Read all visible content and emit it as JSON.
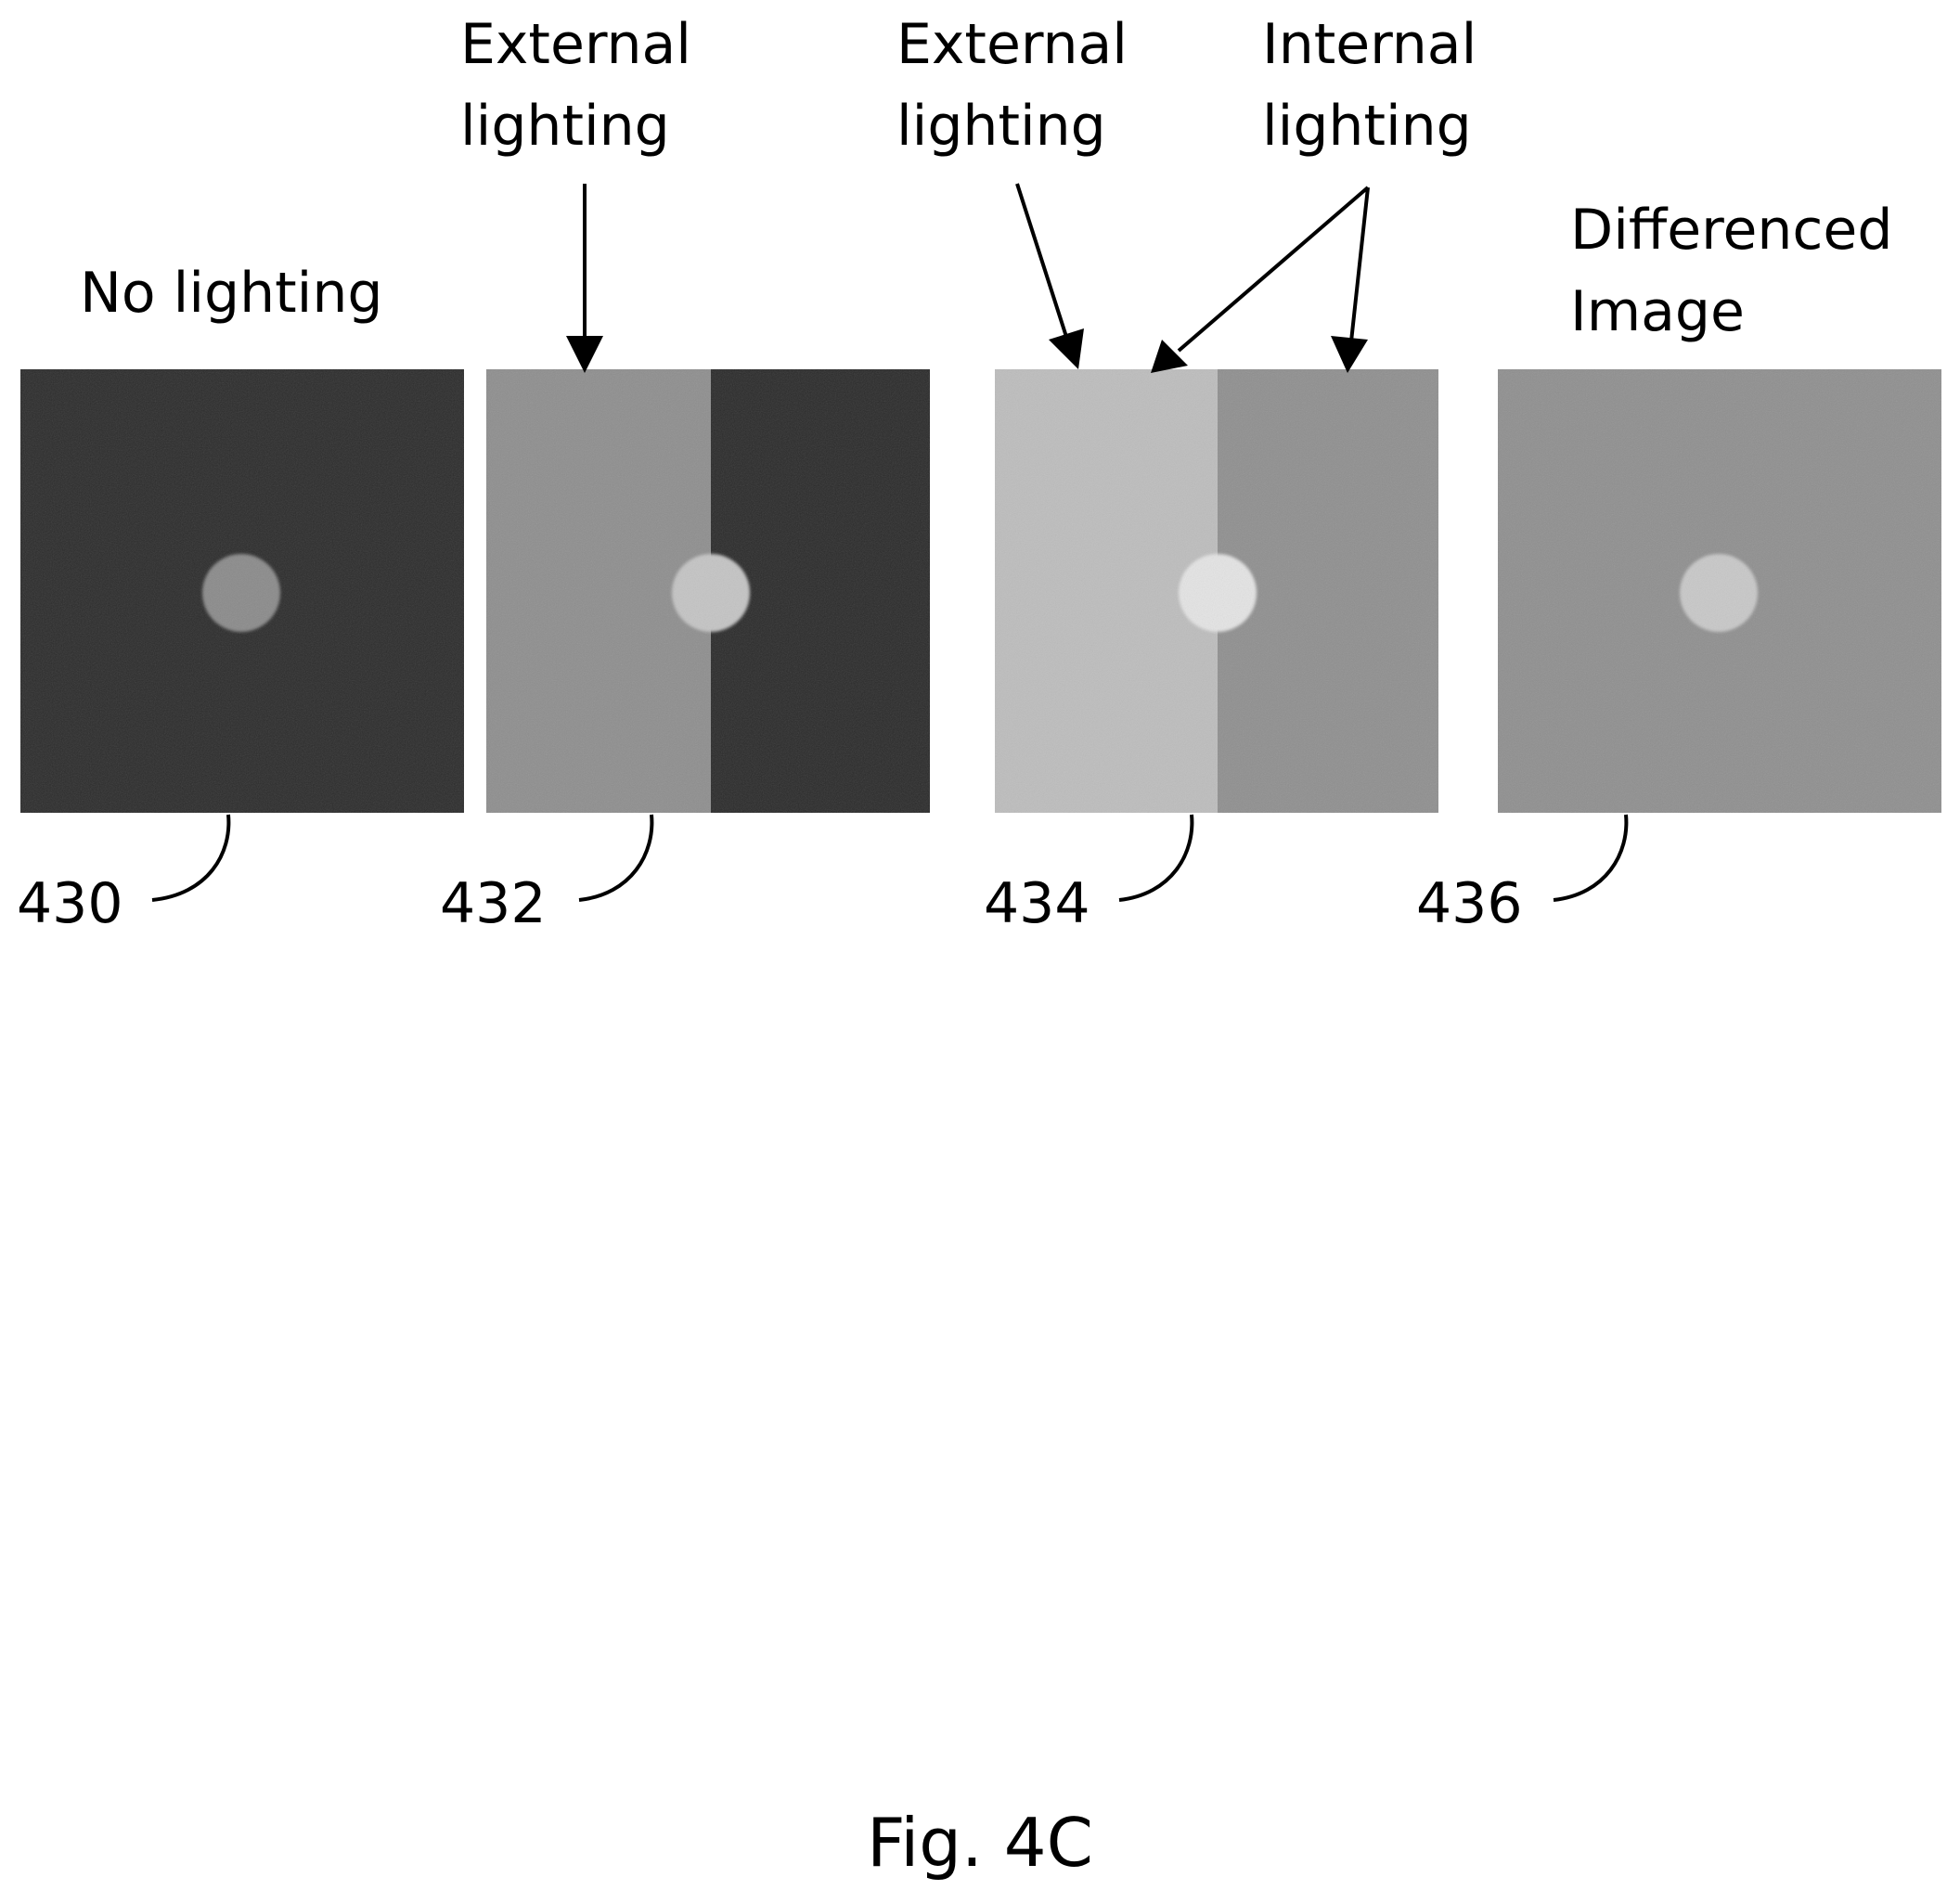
{
  "labels": {
    "no_lighting": "No lighting",
    "external_1_line1": "External",
    "external_1_line2": "lighting",
    "external_2_line1": "External",
    "external_2_line2": "lighting",
    "internal_line1": "Internal",
    "internal_line2": "lighting",
    "differenced_line1": "Differenced",
    "differenced_line2": "Image"
  },
  "refs": {
    "r430": "430",
    "r432": "432",
    "r434": "434",
    "r436": "436"
  },
  "figure_caption": "Fig. 4C",
  "colors": {
    "panel_430": "#2b2b2b",
    "dot_430": "#8a8a8a",
    "panel_432_left": "#8e8e8e",
    "panel_432_right": "#2a2a2a",
    "dot_432": "#c4c4c4",
    "panel_434_left": "#bdbdbd",
    "panel_434_right": "#8f8f8f",
    "dot_434": "#e4e4e4",
    "panel_436": "#8f8f8f",
    "dot_436": "#c8c8c8"
  }
}
